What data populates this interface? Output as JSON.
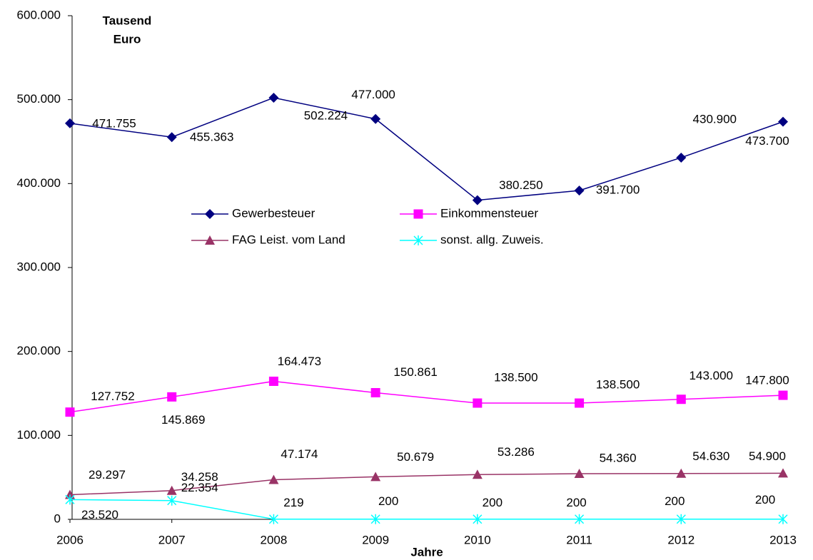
{
  "chart_data": {
    "type": "line",
    "ylabel": [
      "Tausend",
      "Euro"
    ],
    "xlabel": "Jahre",
    "categories": [
      "2006",
      "2007",
      "2008",
      "2009",
      "2010",
      "2011",
      "2012",
      "2013"
    ],
    "ylim": [
      0,
      600000
    ],
    "yticks": [
      0,
      {
        "value": 100000,
        "label": "100.000"
      },
      {
        "value": 200000,
        "label": "200.000"
      },
      {
        "value": 300000,
        "label": "300.000"
      },
      {
        "value": 400000,
        "label": "400.000"
      },
      {
        "value": 500000,
        "label": "500.000"
      },
      {
        "value": 600000,
        "label": "600.000"
      }
    ],
    "series": [
      {
        "name": "Gewerbesteuer",
        "color": "#000080",
        "marker": "diamond",
        "values": [
          471755,
          455363,
          502224,
          477000,
          380250,
          391700,
          430900,
          473700
        ],
        "value_labels": [
          "471.755",
          "455.363",
          "502.224",
          "477.000",
          "380.250",
          "391.700",
          "430.900",
          "473.700"
        ]
      },
      {
        "name": "Einkommensteuer",
        "color": "#ff00ff",
        "marker": "square",
        "values": [
          127752,
          145869,
          164473,
          150861,
          138500,
          138500,
          143000,
          147800
        ],
        "value_labels": [
          "127.752",
          "145.869",
          "164.473",
          "150.861",
          "138.500",
          "138.500",
          "143.000",
          "147.800"
        ]
      },
      {
        "name": "FAG Leist. vom Land",
        "color": "#993366",
        "marker": "triangle",
        "values": [
          29297,
          34258,
          47174,
          50679,
          53286,
          54360,
          54630,
          54900
        ],
        "value_labels": [
          "29.297",
          "34.258",
          "47.174",
          "50.679",
          "53.286",
          "54.360",
          "54.630",
          "54.900"
        ]
      },
      {
        "name": "sonst. allg. Zuweis.",
        "color": "#00ffff",
        "marker": "star",
        "values": [
          23520,
          22354,
          219,
          200,
          200,
          200,
          200,
          200
        ],
        "value_labels": [
          "23.520",
          "22.354",
          "219",
          "200",
          "200",
          "200",
          "200",
          "200"
        ]
      }
    ]
  }
}
